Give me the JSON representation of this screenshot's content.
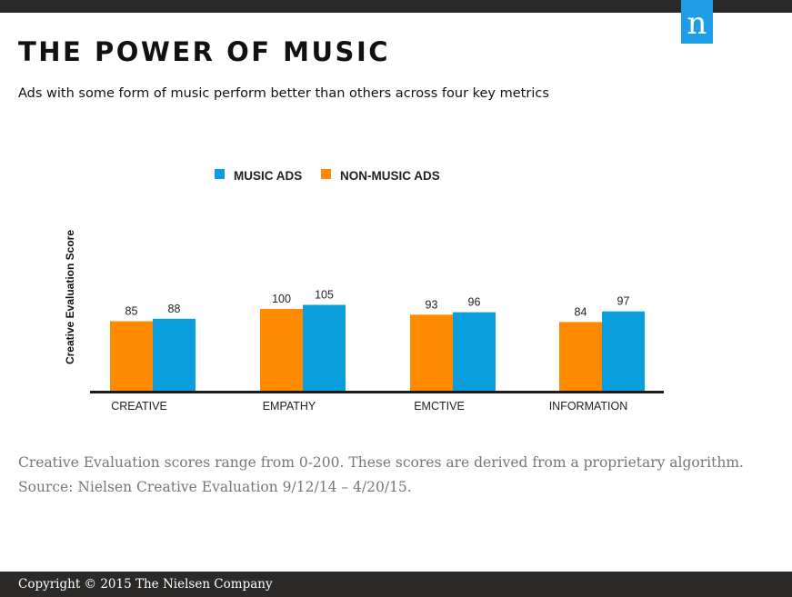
{
  "header": {
    "logo_text": "n",
    "title": "THE POWER OF MUSIC",
    "subtitle": "Ads with some form of music perform better than others across four key metrics"
  },
  "colors": {
    "music": "#0a9fdc",
    "non_music": "#ff8a00",
    "brand": "#1e9ee8",
    "bar_dark": "#2b2a29"
  },
  "chart_data": {
    "type": "bar",
    "ylabel": "Creative Evaluation Score",
    "xlabel": "",
    "categories": [
      "CREATIVE",
      "EMPATHY",
      "EMCTIVE",
      "INFORMATION"
    ],
    "series": [
      {
        "name": "NON-MUSIC ADS",
        "values": [
          85,
          100,
          93,
          84
        ]
      },
      {
        "name": "MUSIC ADS",
        "values": [
          88,
          105,
          96,
          97
        ]
      }
    ],
    "legend_order": [
      "MUSIC ADS",
      "NON-MUSIC ADS"
    ],
    "legend_position": "top",
    "ylim": [
      0,
      120
    ],
    "grid": false
  },
  "notes": {
    "line1": "Creative Evaluation scores range from 0-200. These scores are derived from a proprietary algorithm.",
    "line2": "Source:  Nielsen Creative Evaluation 9/12/14 – 4/20/15."
  },
  "footer": {
    "copyright": "Copyright © 2015 The Nielsen Company"
  }
}
